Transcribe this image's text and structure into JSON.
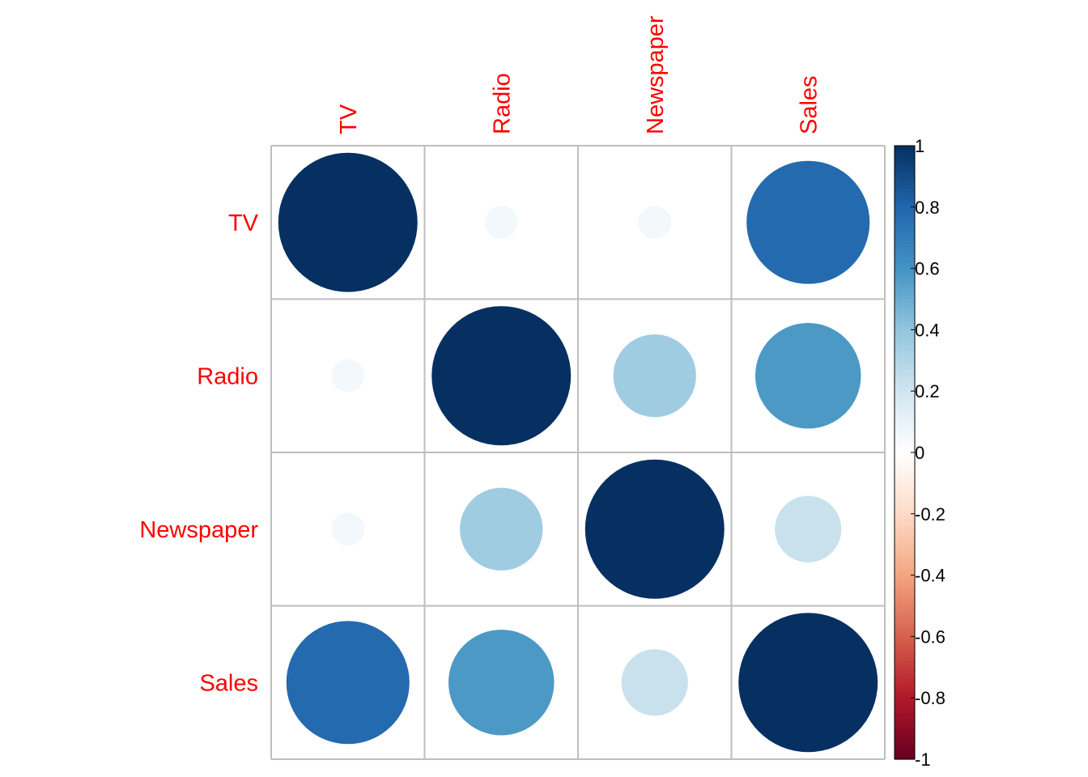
{
  "chart_data": {
    "type": "heatmap",
    "style": "corrplot-circle",
    "variables": [
      "TV",
      "Radio",
      "Newspaper",
      "Sales"
    ],
    "matrix": [
      [
        1.0,
        0.055,
        0.057,
        0.782
      ],
      [
        0.055,
        1.0,
        0.354,
        0.576
      ],
      [
        0.057,
        0.354,
        1.0,
        0.228
      ],
      [
        0.782,
        0.576,
        0.228,
        1.0
      ]
    ],
    "label_color": "#FF0000",
    "grid_color": "#BEBEBE",
    "colorbar": {
      "range": [
        -1,
        1
      ],
      "ticks": [
        "1",
        "0.8",
        "0.6",
        "0.4",
        "0.2",
        "0",
        "-0.2",
        "-0.4",
        "-0.6",
        "-0.8",
        "-1"
      ],
      "palette": [
        "#67001F",
        "#B2182B",
        "#D6604D",
        "#F4A582",
        "#FDDBC7",
        "#FFFFFF",
        "#D1E5F0",
        "#92C5DE",
        "#4393C3",
        "#2166AC",
        "#053061"
      ],
      "placement": "right"
    }
  }
}
